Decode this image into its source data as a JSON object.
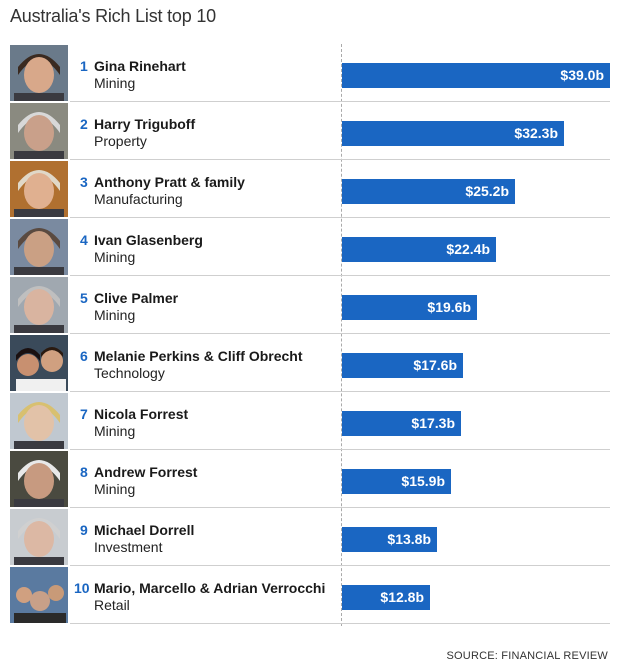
{
  "title": "Australia's Rich List top 10",
  "source": "SOURCE: FINANCIAL REVIEW",
  "colors": {
    "bar": "#1a66c2",
    "rank": "#1a66c2"
  },
  "chart_data": {
    "type": "bar",
    "orientation": "horizontal",
    "title": "Australia's Rich List top 10",
    "categories": [
      "Gina Rinehart",
      "Harry Triguboff",
      "Anthony Pratt & family",
      "Ivan Glasenberg",
      "Clive Palmer",
      "Melanie Perkins & Cliff Obrecht",
      "Nicola Forrest",
      "Andrew Forrest",
      "Michael Dorrell",
      "Mario, Marcello & Adrian Verrocchi"
    ],
    "values": [
      39.0,
      32.3,
      25.2,
      22.4,
      19.6,
      17.6,
      17.3,
      15.9,
      13.8,
      12.8
    ],
    "xlim": [
      0,
      39.0
    ],
    "rows": [
      {
        "rank": "1",
        "name": "Gina Rinehart",
        "industry": "Mining",
        "value": 39.0,
        "label": "$39.0b",
        "photo": "portrait-icon"
      },
      {
        "rank": "2",
        "name": "Harry Triguboff",
        "industry": "Property",
        "value": 32.3,
        "label": "$32.3b",
        "photo": "portrait-icon"
      },
      {
        "rank": "3",
        "name": "Anthony Pratt & family",
        "industry": "Manufacturing",
        "value": 25.2,
        "label": "$25.2b",
        "photo": "portrait-icon"
      },
      {
        "rank": "4",
        "name": "Ivan Glasenberg",
        "industry": "Mining",
        "value": 22.4,
        "label": "$22.4b",
        "photo": "portrait-icon"
      },
      {
        "rank": "5",
        "name": "Clive Palmer",
        "industry": "Mining",
        "value": 19.6,
        "label": "$19.6b",
        "photo": "portrait-icon"
      },
      {
        "rank": "6",
        "name": "Melanie Perkins & Cliff Obrecht",
        "industry": "Technology",
        "value": 17.6,
        "label": "$17.6b",
        "photo": "portrait-pair-icon"
      },
      {
        "rank": "7",
        "name": "Nicola Forrest",
        "industry": "Mining",
        "value": 17.3,
        "label": "$17.3b",
        "photo": "portrait-icon"
      },
      {
        "rank": "8",
        "name": "Andrew Forrest",
        "industry": "Mining",
        "value": 15.9,
        "label": "$15.9b",
        "photo": "portrait-icon"
      },
      {
        "rank": "9",
        "name": "Michael Dorrell",
        "industry": "Investment",
        "value": 13.8,
        "label": "$13.8b",
        "photo": "portrait-icon"
      },
      {
        "rank": "10",
        "name": "Mario, Marcello & Adrian Verrocchi",
        "industry": "Retail",
        "value": 12.8,
        "label": "$12.8b",
        "photo": "portrait-group-icon"
      }
    ]
  }
}
